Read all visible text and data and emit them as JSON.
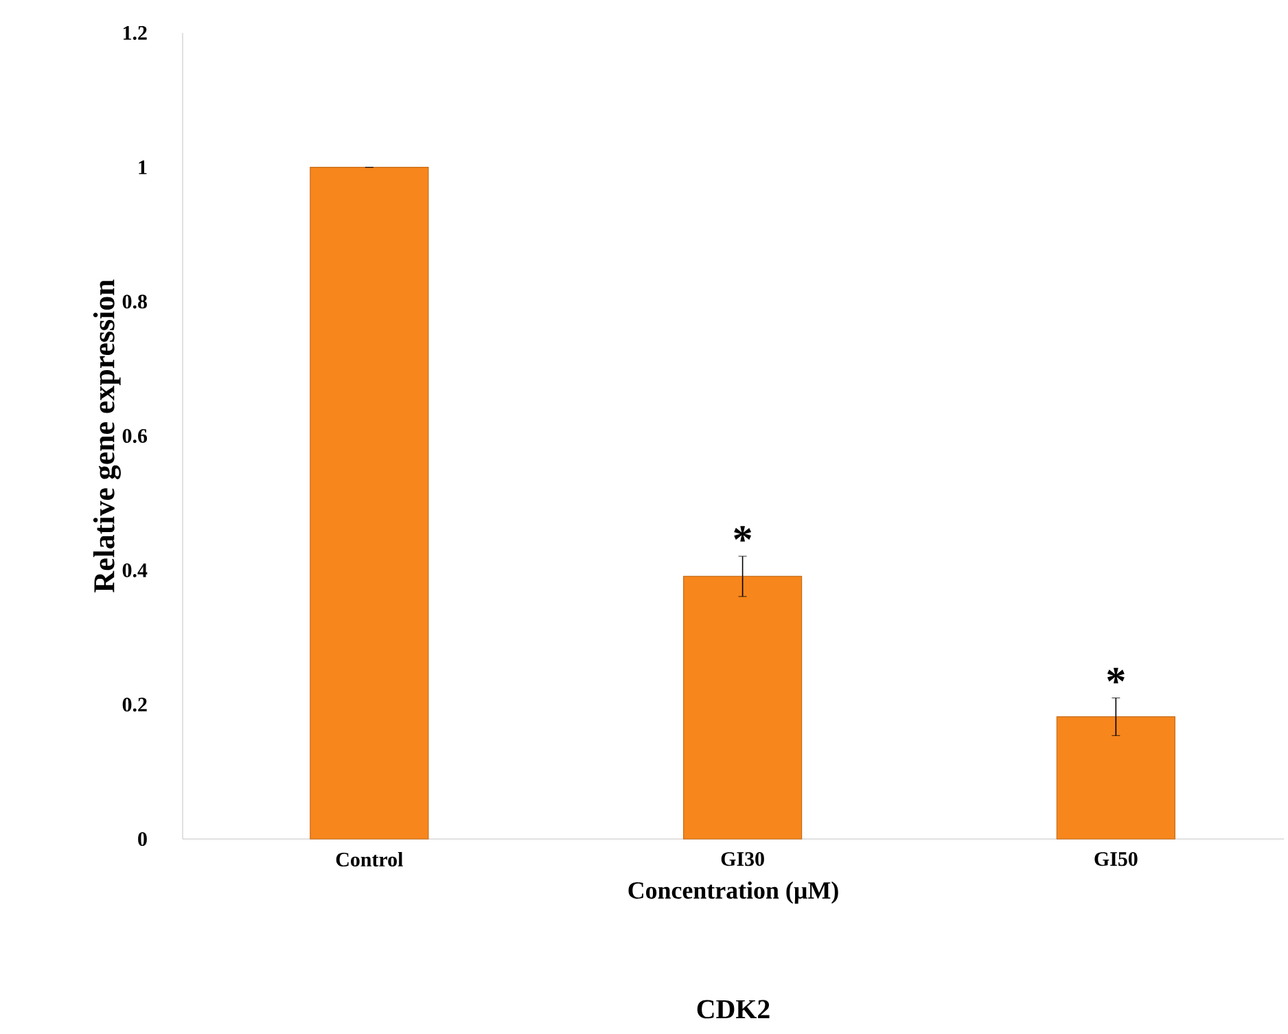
{
  "chart_data": {
    "type": "bar",
    "title": "CDK2",
    "xlabel": "Concentration (µM)",
    "ylabel": "Relative  gene expression",
    "categories": [
      "Control",
      "GI30",
      "GI50"
    ],
    "values": [
      1,
      0.391,
      0.182
    ],
    "errors": [
      0,
      0.03,
      0.028
    ],
    "color": "#f7861c",
    "ylim": [
      0,
      1.2
    ],
    "yticks": [
      0,
      0.2,
      0.4,
      0.6,
      0.8,
      1,
      1.2
    ],
    "annotations": [
      "*",
      "*"
    ]
  }
}
